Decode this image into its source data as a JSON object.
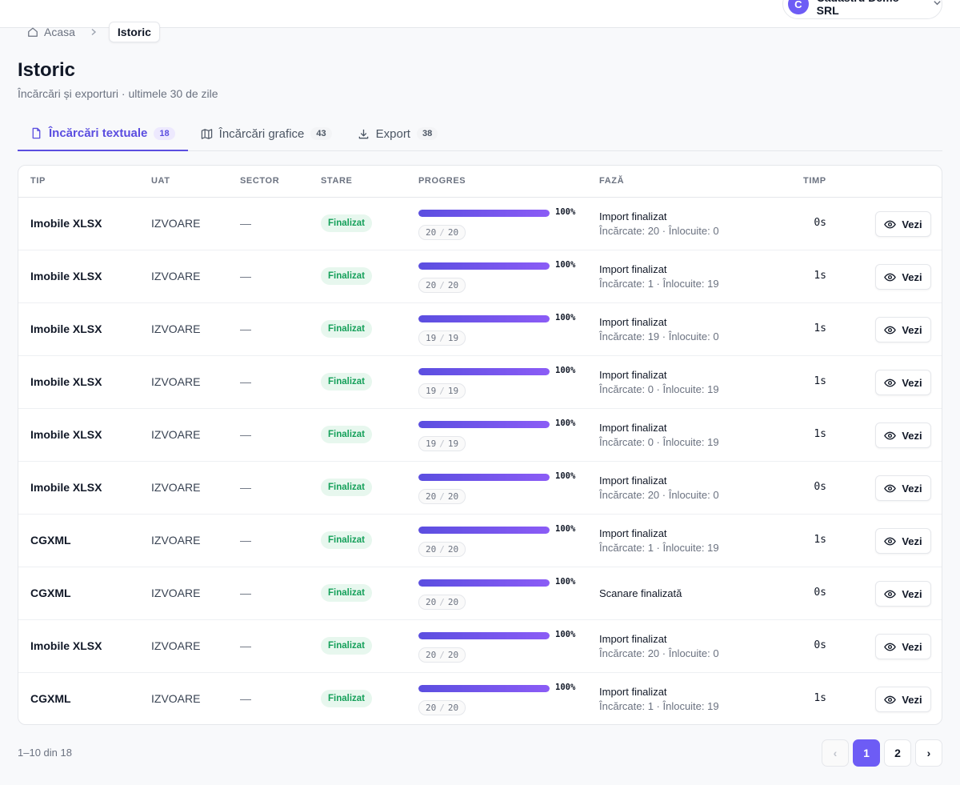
{
  "org": {
    "avatar_letter": "C",
    "name": "Cadastru Demo SRL"
  },
  "breadcrumb": {
    "home": "Acasa",
    "current": "Istoric"
  },
  "page": {
    "title": "Istoric",
    "subtitle": "Încărcări și exporturi · ultimele 30 de zile"
  },
  "tabs": [
    {
      "label": "Încărcări textuale",
      "count": "18",
      "active": true,
      "icon": "file-icon"
    },
    {
      "label": "Încărcări grafice",
      "count": "43",
      "active": false,
      "icon": "map-icon"
    },
    {
      "label": "Export",
      "count": "38",
      "active": false,
      "icon": "download-icon"
    }
  ],
  "table": {
    "headers": {
      "tip": "TIP",
      "uat": "UAT",
      "sector": "SECTOR",
      "stare": "STARE",
      "progres": "PROGRES",
      "faza": "FAZĂ",
      "timp": "TIMP"
    },
    "action_label": "Vezi",
    "rows": [
      {
        "tip": "Imobile XLSX",
        "uat": "IZVOARE",
        "sector": "—",
        "stare": "Finalizat",
        "progress": 1.0,
        "pct": "100%",
        "done": "20",
        "total": "20",
        "faza1": "Import finalizat",
        "faza2": "Încărcate: 20 · Înlocuite: 0",
        "timp": "0s"
      },
      {
        "tip": "Imobile XLSX",
        "uat": "IZVOARE",
        "sector": "—",
        "stare": "Finalizat",
        "progress": 1.0,
        "pct": "100%",
        "done": "20",
        "total": "20",
        "faza1": "Import finalizat",
        "faza2": "Încărcate: 1 · Înlocuite: 19",
        "timp": "1s"
      },
      {
        "tip": "Imobile XLSX",
        "uat": "IZVOARE",
        "sector": "—",
        "stare": "Finalizat",
        "progress": 1.0,
        "pct": "100%",
        "done": "19",
        "total": "19",
        "faza1": "Import finalizat",
        "faza2": "Încărcate: 19 · Înlocuite: 0",
        "timp": "1s"
      },
      {
        "tip": "Imobile XLSX",
        "uat": "IZVOARE",
        "sector": "—",
        "stare": "Finalizat",
        "progress": 1.0,
        "pct": "100%",
        "done": "19",
        "total": "19",
        "faza1": "Import finalizat",
        "faza2": "Încărcate: 0 · Înlocuite: 19",
        "timp": "1s"
      },
      {
        "tip": "Imobile XLSX",
        "uat": "IZVOARE",
        "sector": "—",
        "stare": "Finalizat",
        "progress": 1.0,
        "pct": "100%",
        "done": "19",
        "total": "19",
        "faza1": "Import finalizat",
        "faza2": "Încărcate: 0 · Înlocuite: 19",
        "timp": "1s"
      },
      {
        "tip": "Imobile XLSX",
        "uat": "IZVOARE",
        "sector": "—",
        "stare": "Finalizat",
        "progress": 1.0,
        "pct": "100%",
        "done": "20",
        "total": "20",
        "faza1": "Import finalizat",
        "faza2": "Încărcate: 20 · Înlocuite: 0",
        "timp": "0s"
      },
      {
        "tip": "CGXML",
        "uat": "IZVOARE",
        "sector": "—",
        "stare": "Finalizat",
        "progress": 1.0,
        "pct": "100%",
        "done": "20",
        "total": "20",
        "faza1": "Import finalizat",
        "faza2": "Încărcate: 1 · Înlocuite: 19",
        "timp": "1s"
      },
      {
        "tip": "CGXML",
        "uat": "IZVOARE",
        "sector": "—",
        "stare": "Finalizat",
        "progress": 1.0,
        "pct": "100%",
        "done": "20",
        "total": "20",
        "faza1": "Scanare finalizată",
        "faza2": "",
        "timp": "0s"
      },
      {
        "tip": "Imobile XLSX",
        "uat": "IZVOARE",
        "sector": "—",
        "stare": "Finalizat",
        "progress": 1.0,
        "pct": "100%",
        "done": "20",
        "total": "20",
        "faza1": "Import finalizat",
        "faza2": "Încărcate: 20 · Înlocuite: 0",
        "timp": "0s"
      },
      {
        "tip": "CGXML",
        "uat": "IZVOARE",
        "sector": "—",
        "stare": "Finalizat",
        "progress": 1.0,
        "pct": "100%",
        "done": "20",
        "total": "20",
        "faza1": "Import finalizat",
        "faza2": "Încărcate: 1 · Înlocuite: 19",
        "timp": "1s"
      }
    ]
  },
  "pagination": {
    "range": "1–10 din 18",
    "prev": "‹",
    "pages": [
      "1",
      "2"
    ],
    "current": "1",
    "next": "›"
  },
  "colors": {
    "accent": "#6d5cf5",
    "success_bg": "#e7f7ee",
    "success_text": "#15a05a"
  }
}
